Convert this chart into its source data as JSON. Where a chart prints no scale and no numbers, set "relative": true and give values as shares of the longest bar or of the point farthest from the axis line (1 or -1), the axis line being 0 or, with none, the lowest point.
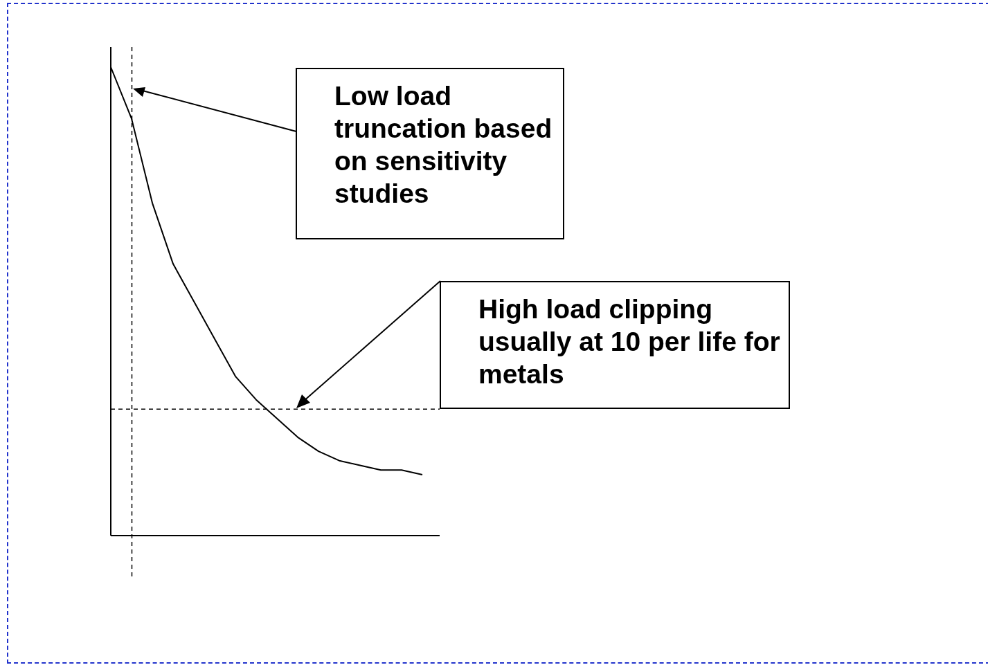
{
  "chart_data": {
    "type": "line",
    "relative": true,
    "categories": [
      null,
      null,
      null,
      null,
      null,
      null,
      null,
      null,
      null,
      null,
      null,
      null,
      null,
      null,
      null,
      null
    ],
    "series": [
      {
        "color": "#000000",
        "values": [
          1,
          0.89,
          0.71,
          0.58,
          0.5,
          0.42,
          0.34,
          0.29,
          0.25,
          0.21,
          0.18,
          0.16,
          0.15,
          0.14,
          0.14,
          0.13
        ]
      }
    ],
    "marker": "none",
    "ref_lines": [
      {
        "axis": "y",
        "value": 0.27,
        "color": "#000000",
        "line_style": "dashed"
      }
    ],
    "annotations": [
      "Low load truncation based on sensitivity studies",
      "High load clipping usually at 10 per life for metals"
    ]
  }
}
